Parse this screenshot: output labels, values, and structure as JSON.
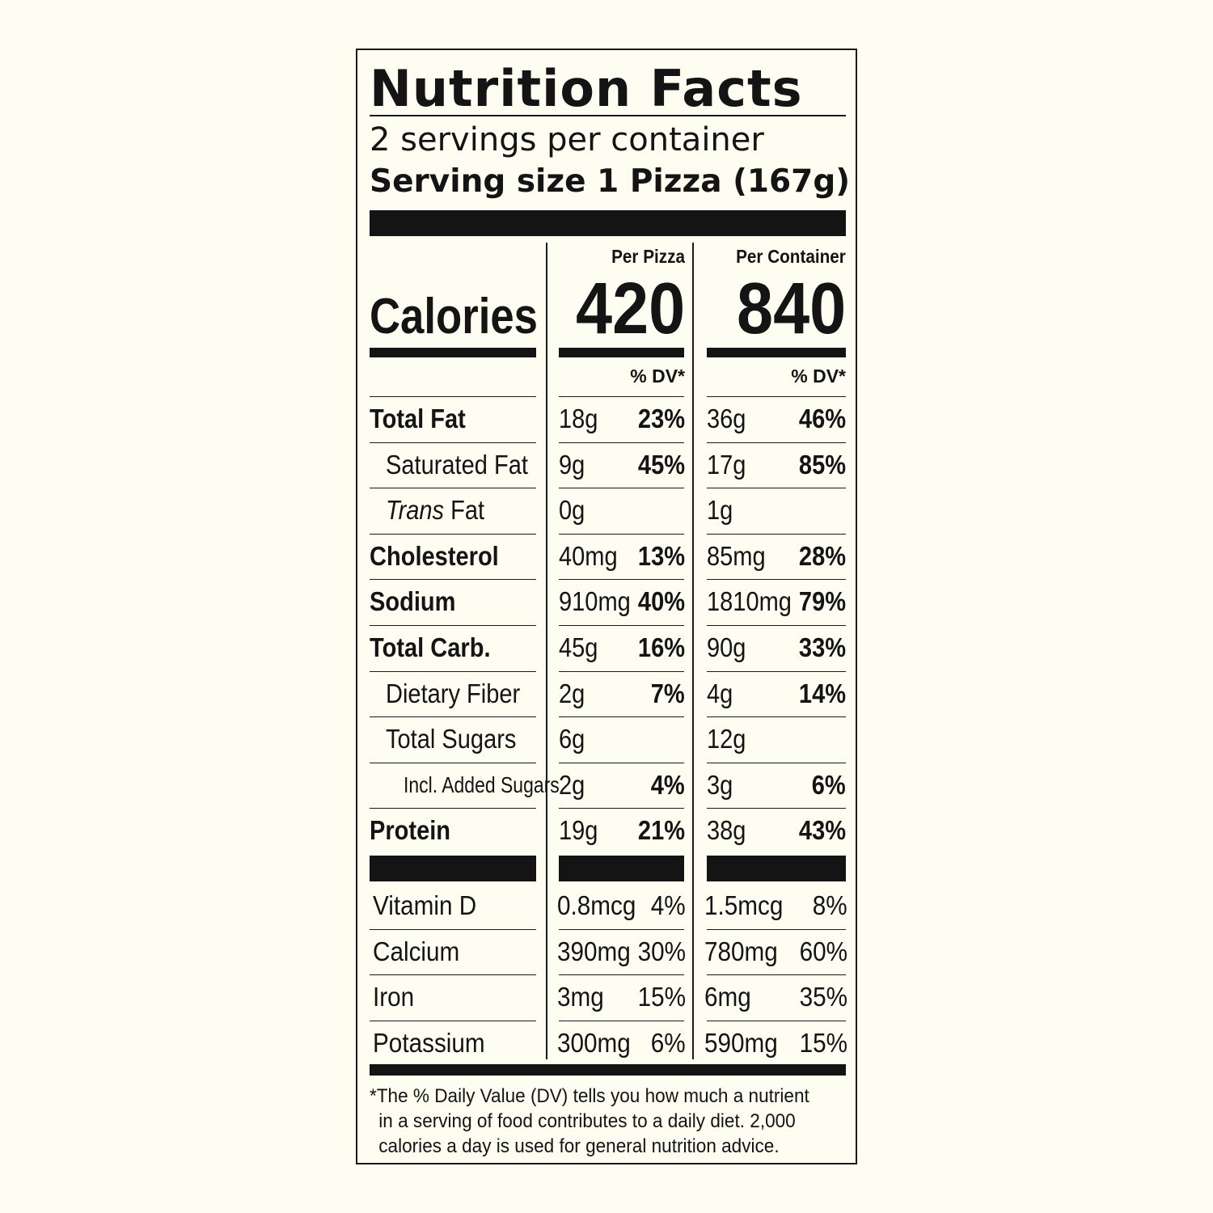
{
  "title": "Nutrition Facts",
  "servings_per_container": "2 servings per container",
  "serving_size": "Serving size 1 Pizza (167g)",
  "columns": {
    "per_serving_label": "Per Pizza",
    "per_container_label": "Per Container",
    "dv_label": "% DV*"
  },
  "calories": {
    "label": "Calories",
    "per_serving": "420",
    "per_container": "840"
  },
  "nutrients": [
    {
      "name": "Total Fat",
      "style": "bold",
      "amount": "18g",
      "dv": "23%",
      "amount_c": "36g",
      "dv_c": "46%"
    },
    {
      "name": "Saturated Fat",
      "style": "indent",
      "amount": "9g",
      "dv": "45%",
      "amount_c": "17g",
      "dv_c": "85%"
    },
    {
      "name": "Fat",
      "prefix_italic": "Trans",
      "style": "indent",
      "amount": "0g",
      "dv": "",
      "amount_c": "1g",
      "dv_c": ""
    },
    {
      "name": "Cholesterol",
      "style": "bold",
      "amount": "40mg",
      "dv": "13%",
      "amount_c": "85mg",
      "dv_c": "28%"
    },
    {
      "name": "Sodium",
      "style": "bold",
      "amount": "910mg",
      "dv": "40%",
      "amount_c": "1810mg",
      "dv_c": "79%"
    },
    {
      "name": "Total Carb.",
      "style": "bold",
      "amount": "45g",
      "dv": "16%",
      "amount_c": "90g",
      "dv_c": "33%"
    },
    {
      "name": "Dietary Fiber",
      "style": "indent",
      "amount": "2g",
      "dv": "7%",
      "amount_c": "4g",
      "dv_c": "14%"
    },
    {
      "name": "Total Sugars",
      "style": "indent",
      "amount": "6g",
      "dv": "",
      "amount_c": "12g",
      "dv_c": ""
    },
    {
      "name": "Incl. Added Sugars",
      "style": "indent2",
      "amount": "2g",
      "dv": "4%",
      "amount_c": "3g",
      "dv_c": "6%"
    },
    {
      "name": "Protein",
      "style": "bold",
      "amount": "19g",
      "dv": "21%",
      "amount_c": "38g",
      "dv_c": "43%"
    }
  ],
  "vitamins": [
    {
      "name": "Vitamin D",
      "amount": "0.8mcg",
      "dv": "4%",
      "amount_c": "1.5mcg",
      "dv_c": "8%"
    },
    {
      "name": "Calcium",
      "amount": "390mg",
      "dv": "30%",
      "amount_c": "780mg",
      "dv_c": "60%"
    },
    {
      "name": "Iron",
      "amount": "3mg",
      "dv": "15%",
      "amount_c": "6mg",
      "dv_c": "35%"
    },
    {
      "name": "Potassium",
      "amount": "300mg",
      "dv": "6%",
      "amount_c": "590mg",
      "dv_c": "15%"
    }
  ],
  "footnote": [
    "*The % Daily Value (DV) tells you how much a nutrient",
    "in a serving of food contributes to a daily diet. 2,000",
    "calories a day is used for general nutrition advice."
  ]
}
